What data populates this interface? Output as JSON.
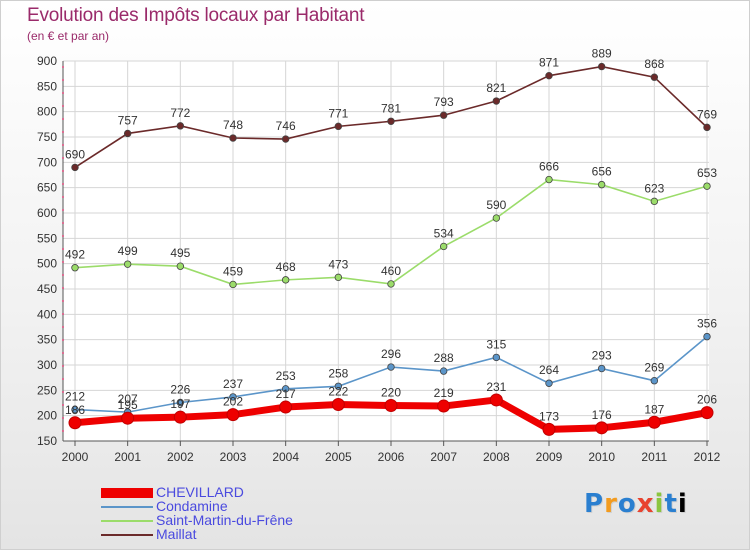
{
  "header": {
    "title": "Evolution des Impôts locaux par Habitant",
    "subtitle": "(en € et par an)"
  },
  "logo": {
    "text": "Proxiti"
  },
  "colors": {
    "title": "#9a2a6a",
    "legend_text": "#4a4adf",
    "grid": "#d6d6d6",
    "axis_text": "#333333"
  },
  "chart_data": {
    "type": "line",
    "title": "Evolution des Impôts locaux par Habitant",
    "subtitle": "(en € et par an)",
    "x": [
      "2000",
      "2001",
      "2002",
      "2003",
      "2004",
      "2005",
      "2006",
      "2007",
      "2008",
      "2009",
      "2010",
      "2011",
      "2012"
    ],
    "ylim": [
      150,
      900
    ],
    "yticks": [
      150,
      200,
      250,
      300,
      350,
      400,
      450,
      500,
      550,
      600,
      650,
      700,
      750,
      800,
      850,
      900
    ],
    "grid": true,
    "legend_position": "bottom-left",
    "series": [
      {
        "name": "CHEVILLARD",
        "color": "#ee0000",
        "emphasis": true,
        "values": [
          186,
          195,
          197,
          202,
          217,
          222,
          220,
          219,
          231,
          173,
          176,
          187,
          206
        ]
      },
      {
        "name": "Condamine",
        "color": "#5b95c9",
        "emphasis": false,
        "values": [
          212,
          207,
          226,
          237,
          253,
          258,
          296,
          288,
          315,
          264,
          293,
          269,
          356
        ]
      },
      {
        "name": "Saint-Martin-du-Frêne",
        "color": "#9bdc6a",
        "emphasis": false,
        "values": [
          492,
          499,
          495,
          459,
          468,
          473,
          460,
          534,
          590,
          666,
          656,
          623,
          653
        ]
      },
      {
        "name": "Maillat",
        "color": "#6b2a2a",
        "emphasis": false,
        "values": [
          690,
          757,
          772,
          748,
          746,
          771,
          781,
          793,
          821,
          871,
          889,
          868,
          769
        ]
      }
    ]
  }
}
